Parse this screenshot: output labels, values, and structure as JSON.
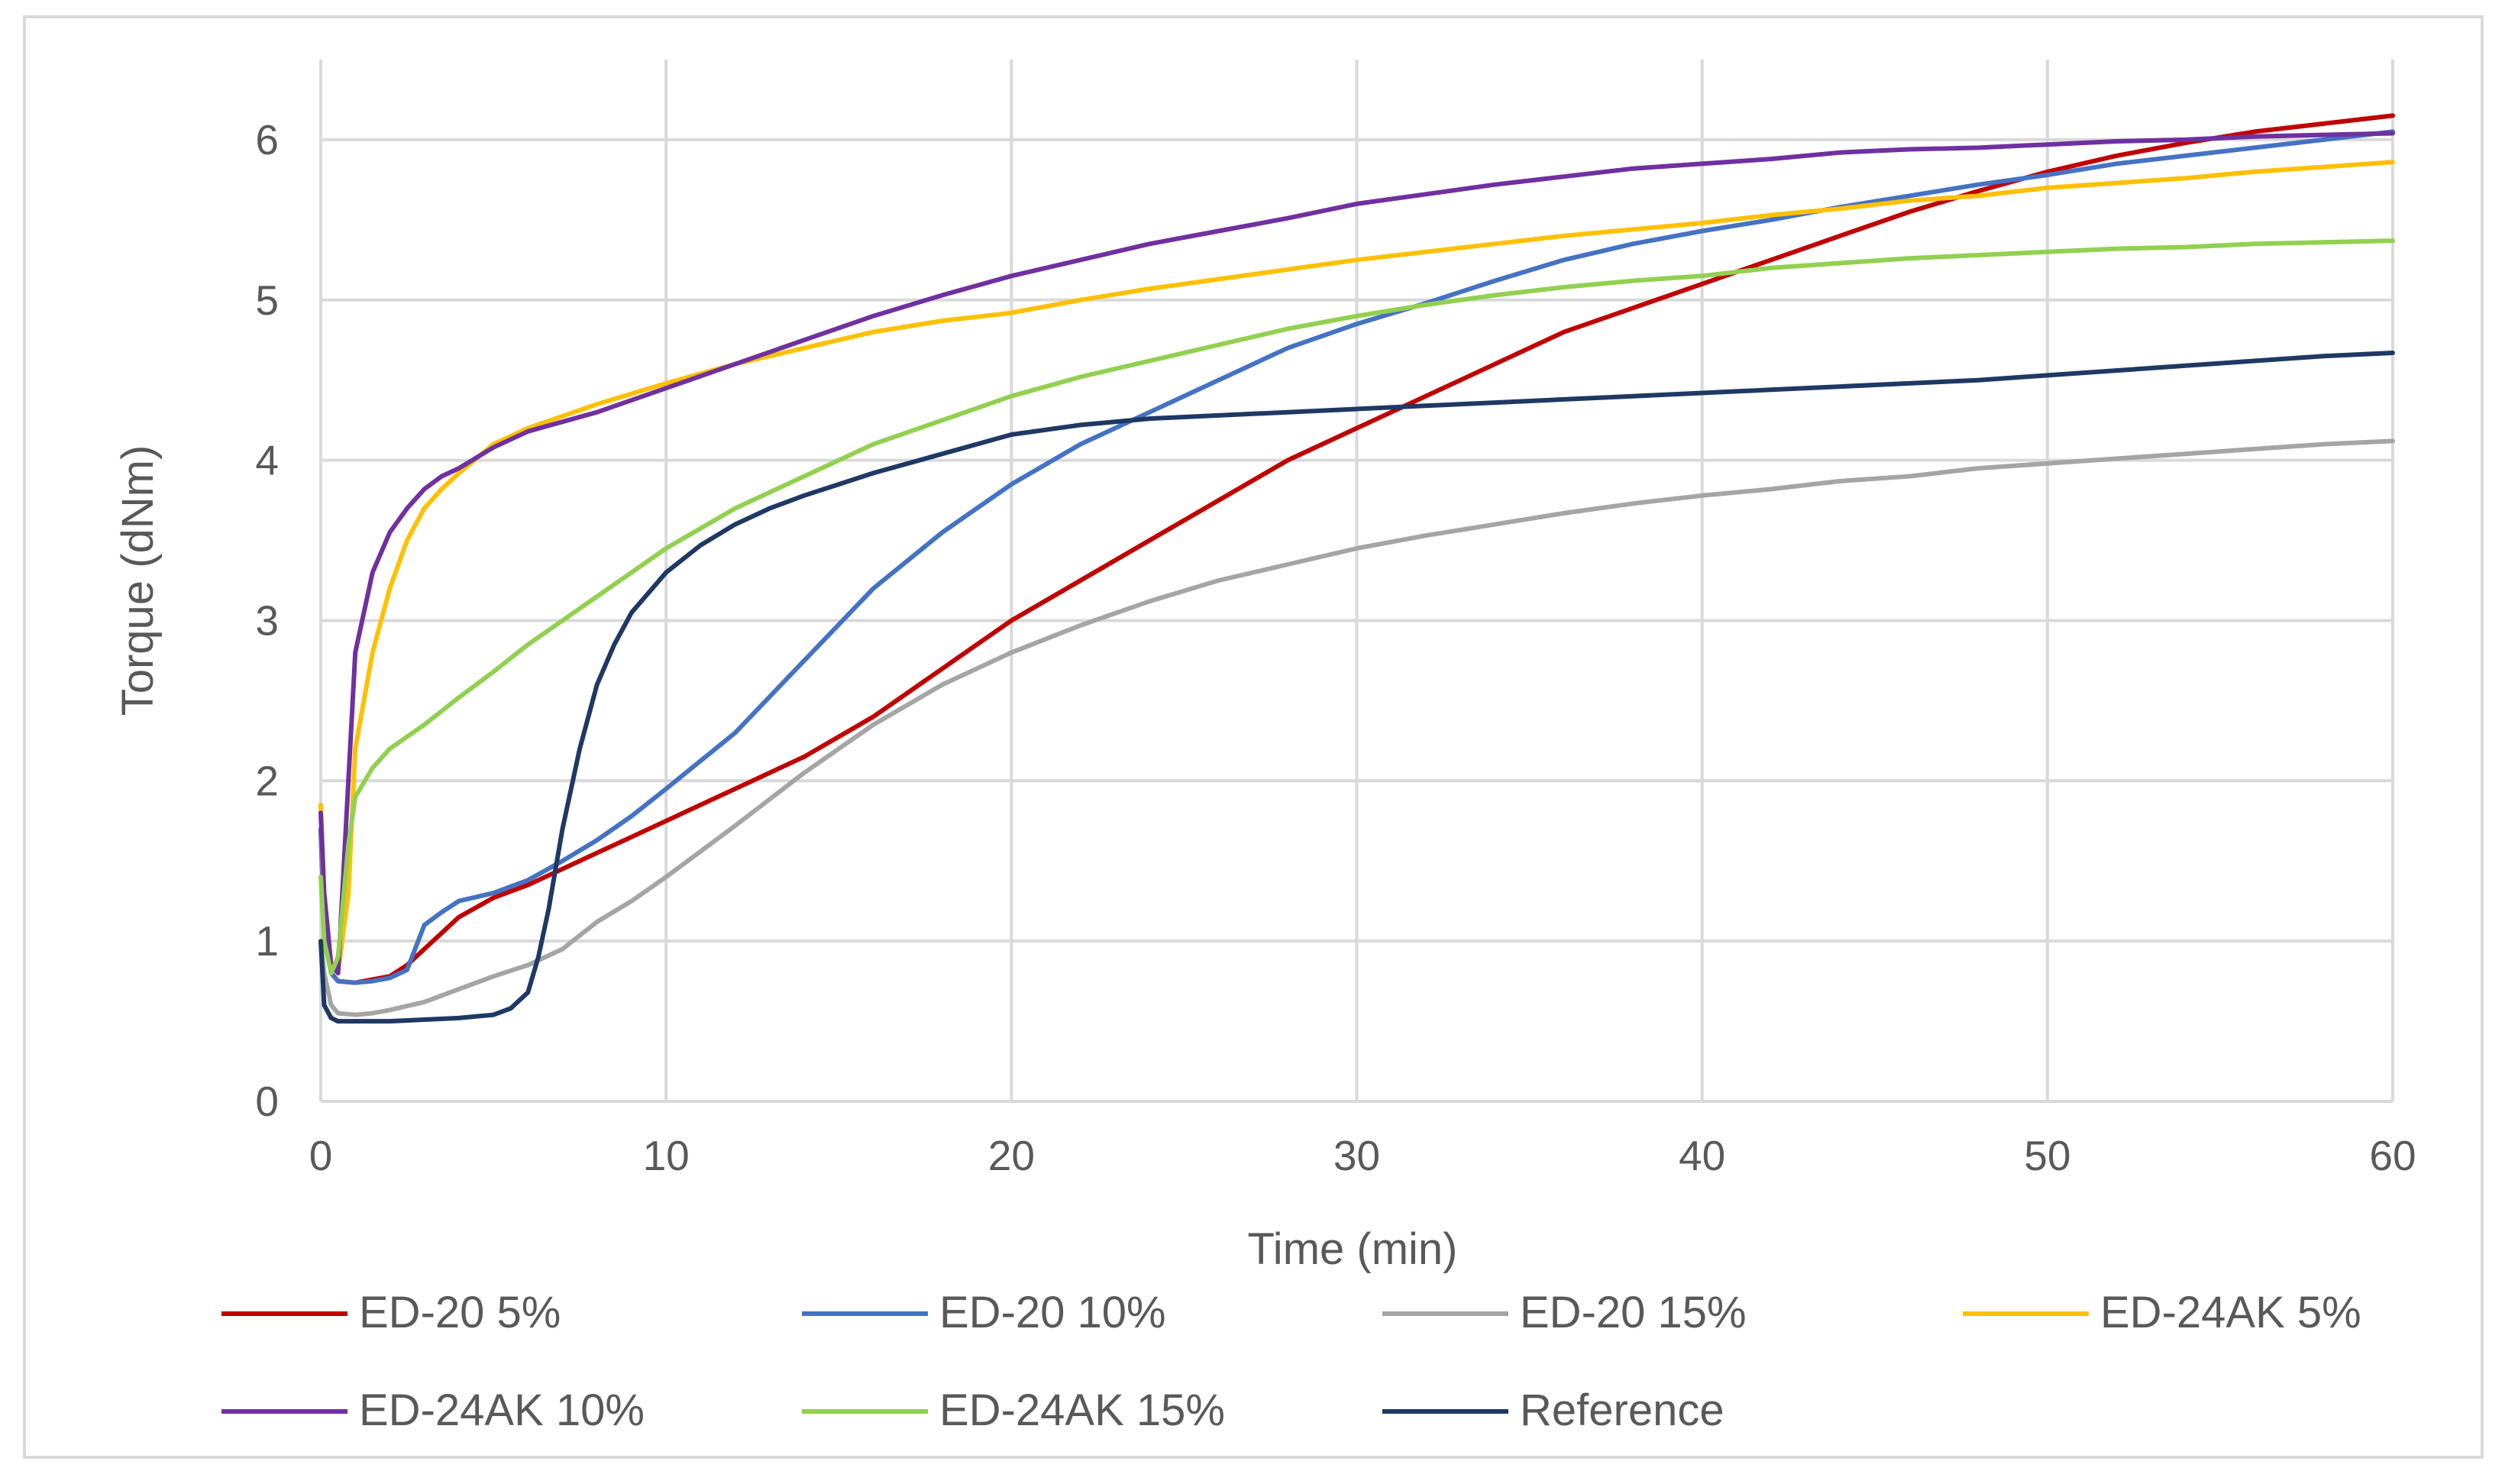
{
  "chart_data": {
    "type": "line",
    "title": "",
    "xlabel": "Time (min)",
    "ylabel": "Torque (dNm)",
    "xlim": [
      0,
      60
    ],
    "ylim": [
      0,
      6.5
    ],
    "xticks": [
      0,
      10,
      20,
      30,
      40,
      50,
      60
    ],
    "yticks": [
      0,
      1,
      2,
      3,
      4,
      5,
      6
    ],
    "grid": true,
    "legend_position": "bottom",
    "series": [
      {
        "name": "ED-20 5%",
        "color": "#c00000",
        "x": [
          0,
          0.1,
          0.3,
          0.5,
          1,
          1.5,
          2,
          2.5,
          3,
          3.5,
          4,
          5,
          6,
          7,
          8,
          9,
          10,
          12,
          14,
          16,
          18,
          20,
          22,
          24,
          26,
          28,
          30,
          32,
          34,
          36,
          38,
          40,
          42,
          44,
          46,
          48,
          50,
          52,
          54,
          56,
          58,
          60
        ],
        "y": [
          1.7,
          1.1,
          0.8,
          0.75,
          0.74,
          0.76,
          0.78,
          0.85,
          0.95,
          1.05,
          1.15,
          1.27,
          1.35,
          1.45,
          1.55,
          1.65,
          1.75,
          1.95,
          2.15,
          2.4,
          2.7,
          3.0,
          3.25,
          3.5,
          3.75,
          4.0,
          4.2,
          4.4,
          4.6,
          4.8,
          4.95,
          5.1,
          5.25,
          5.4,
          5.55,
          5.68,
          5.8,
          5.9,
          5.98,
          6.05,
          6.1,
          6.15
        ]
      },
      {
        "name": "ED-20 10%",
        "color": "#4472c4",
        "x": [
          0,
          0.1,
          0.3,
          0.5,
          1,
          1.5,
          2,
          2.5,
          3,
          3.5,
          4,
          5,
          6,
          7,
          8,
          9,
          10,
          12,
          14,
          16,
          18,
          20,
          22,
          24,
          26,
          28,
          30,
          32,
          34,
          36,
          38,
          40,
          42,
          44,
          46,
          48,
          50,
          52,
          54,
          56,
          58,
          60
        ],
        "y": [
          1.7,
          1.1,
          0.8,
          0.75,
          0.74,
          0.75,
          0.77,
          0.82,
          1.1,
          1.18,
          1.25,
          1.3,
          1.38,
          1.5,
          1.63,
          1.78,
          1.95,
          2.3,
          2.75,
          3.2,
          3.55,
          3.85,
          4.1,
          4.3,
          4.5,
          4.7,
          4.85,
          4.98,
          5.12,
          5.25,
          5.35,
          5.43,
          5.5,
          5.58,
          5.65,
          5.72,
          5.78,
          5.85,
          5.9,
          5.95,
          6.0,
          6.05
        ]
      },
      {
        "name": "ED-20 15%",
        "color": "#a5a5a5",
        "x": [
          0,
          0.1,
          0.3,
          0.5,
          1,
          1.5,
          2,
          3,
          4,
          5,
          6,
          7,
          8,
          9,
          10,
          12,
          14,
          16,
          18,
          20,
          22,
          24,
          26,
          28,
          30,
          32,
          34,
          36,
          38,
          40,
          42,
          44,
          46,
          48,
          50,
          52,
          54,
          56,
          58,
          60
        ],
        "y": [
          1.0,
          0.8,
          0.6,
          0.55,
          0.54,
          0.55,
          0.57,
          0.62,
          0.7,
          0.78,
          0.85,
          0.95,
          1.12,
          1.25,
          1.4,
          1.72,
          2.05,
          2.35,
          2.6,
          2.8,
          2.97,
          3.12,
          3.25,
          3.35,
          3.45,
          3.53,
          3.6,
          3.67,
          3.73,
          3.78,
          3.82,
          3.87,
          3.9,
          3.95,
          3.98,
          4.01,
          4.04,
          4.07,
          4.1,
          4.12
        ]
      },
      {
        "name": "ED-24AK 5%",
        "color": "#ffc000",
        "x": [
          0,
          0.1,
          0.3,
          0.5,
          0.8,
          1,
          1.5,
          2,
          2.5,
          3,
          3.5,
          4,
          5,
          6,
          8,
          10,
          12,
          14,
          16,
          18,
          20,
          22,
          24,
          26,
          28,
          30,
          32,
          34,
          36,
          38,
          40,
          42,
          44,
          46,
          48,
          50,
          52,
          54,
          56,
          58,
          60
        ],
        "y": [
          1.85,
          1.2,
          0.85,
          0.8,
          1.3,
          2.2,
          2.8,
          3.2,
          3.5,
          3.7,
          3.82,
          3.92,
          4.1,
          4.2,
          4.35,
          4.48,
          4.6,
          4.7,
          4.8,
          4.87,
          4.92,
          5.0,
          5.07,
          5.13,
          5.19,
          5.25,
          5.3,
          5.35,
          5.4,
          5.44,
          5.48,
          5.53,
          5.57,
          5.62,
          5.65,
          5.7,
          5.73,
          5.76,
          5.8,
          5.83,
          5.86
        ]
      },
      {
        "name": "ED-24AK 10%",
        "color": "#7030a0",
        "x": [
          0,
          0.1,
          0.3,
          0.5,
          0.8,
          1,
          1.5,
          2,
          2.5,
          3,
          3.5,
          4,
          5,
          6,
          8,
          10,
          12,
          14,
          16,
          18,
          20,
          22,
          24,
          26,
          28,
          30,
          32,
          34,
          36,
          38,
          40,
          42,
          44,
          46,
          48,
          50,
          52,
          54,
          56,
          58,
          60
        ],
        "y": [
          1.8,
          1.3,
          0.85,
          0.8,
          2.0,
          2.8,
          3.3,
          3.55,
          3.7,
          3.82,
          3.9,
          3.95,
          4.08,
          4.18,
          4.3,
          4.45,
          4.6,
          4.75,
          4.9,
          5.03,
          5.15,
          5.25,
          5.35,
          5.43,
          5.51,
          5.6,
          5.66,
          5.72,
          5.77,
          5.82,
          5.85,
          5.88,
          5.92,
          5.94,
          5.95,
          5.97,
          5.99,
          6.0,
          6.02,
          6.03,
          6.04
        ]
      },
      {
        "name": "ED-24AK 15%",
        "color": "#92d050",
        "x": [
          0,
          0.1,
          0.3,
          0.5,
          0.8,
          1,
          1.5,
          2,
          3,
          4,
          5,
          6,
          8,
          10,
          12,
          14,
          16,
          18,
          20,
          22,
          24,
          26,
          28,
          30,
          32,
          34,
          36,
          38,
          40,
          42,
          44,
          46,
          48,
          50,
          52,
          54,
          56,
          58,
          60
        ],
        "y": [
          1.4,
          1.0,
          0.8,
          0.9,
          1.6,
          1.9,
          2.08,
          2.2,
          2.35,
          2.52,
          2.68,
          2.85,
          3.15,
          3.45,
          3.7,
          3.9,
          4.1,
          4.25,
          4.4,
          4.52,
          4.62,
          4.72,
          4.82,
          4.9,
          4.97,
          5.03,
          5.08,
          5.12,
          5.15,
          5.2,
          5.23,
          5.26,
          5.28,
          5.3,
          5.32,
          5.33,
          5.35,
          5.36,
          5.37
        ]
      },
      {
        "name": "Reference",
        "color": "#1f3864",
        "x": [
          0,
          0.1,
          0.3,
          0.5,
          1,
          2,
          3,
          4,
          5,
          5.5,
          6,
          6.3,
          6.6,
          7,
          7.5,
          8,
          8.5,
          9,
          10,
          11,
          12,
          13,
          14,
          15,
          16,
          17,
          18,
          19,
          20,
          22,
          24,
          26,
          28,
          30,
          32,
          34,
          36,
          38,
          40,
          42,
          44,
          46,
          48,
          50,
          52,
          54,
          56,
          58,
          60
        ],
        "y": [
          1.0,
          0.6,
          0.52,
          0.5,
          0.5,
          0.5,
          0.51,
          0.52,
          0.54,
          0.58,
          0.68,
          0.9,
          1.2,
          1.7,
          2.2,
          2.6,
          2.85,
          3.05,
          3.3,
          3.47,
          3.6,
          3.7,
          3.78,
          3.85,
          3.92,
          3.98,
          4.04,
          4.1,
          4.16,
          4.22,
          4.26,
          4.28,
          4.3,
          4.32,
          4.34,
          4.36,
          4.38,
          4.4,
          4.42,
          4.44,
          4.46,
          4.48,
          4.5,
          4.53,
          4.56,
          4.59,
          4.62,
          4.65,
          4.67
        ]
      }
    ]
  }
}
